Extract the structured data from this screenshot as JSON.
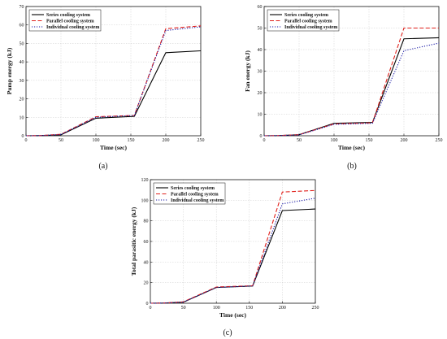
{
  "chart_data": [
    {
      "type": "line",
      "panel_label": "(a)",
      "xlabel": "Time (sec)",
      "ylabel": "Pump energy (kJ)",
      "xlim": [
        0,
        250
      ],
      "ylim": [
        0,
        70
      ],
      "xticks": [
        0,
        50,
        100,
        150,
        200,
        250
      ],
      "yticks": [
        0,
        10,
        20,
        30,
        40,
        50,
        60,
        70
      ],
      "grid": true,
      "legend_position": "top-left",
      "series": [
        {
          "name": "Series cooling system",
          "color": "#000000",
          "dash": "solid",
          "x": [
            0,
            20,
            50,
            100,
            155,
            200,
            250
          ],
          "y": [
            0,
            0.1,
            0.5,
            9.5,
            10.5,
            45,
            46
          ]
        },
        {
          "name": "Parallel cooling system",
          "color": "#e0201b",
          "dash": "dashed",
          "x": [
            0,
            20,
            50,
            100,
            155,
            200,
            250
          ],
          "y": [
            0,
            0.1,
            0.8,
            10.3,
            11,
            58,
            59.5
          ]
        },
        {
          "name": "Individual cooling system",
          "color": "#1a1aa6",
          "dash": "dotted",
          "x": [
            0,
            20,
            50,
            100,
            155,
            200,
            250
          ],
          "y": [
            0,
            0.1,
            0.7,
            10,
            11,
            57,
            59
          ]
        }
      ]
    },
    {
      "type": "line",
      "panel_label": "(b)",
      "xlabel": "Time (sec)",
      "ylabel": "Fan energy (kJ)",
      "xlim": [
        0,
        250
      ],
      "ylim": [
        0,
        60
      ],
      "xticks": [
        0,
        50,
        100,
        150,
        200,
        250
      ],
      "yticks": [
        0,
        10,
        20,
        30,
        40,
        50,
        60
      ],
      "grid": true,
      "legend_position": "top-left",
      "series": [
        {
          "name": "Series cooling system",
          "color": "#000000",
          "dash": "solid",
          "x": [
            0,
            20,
            50,
            100,
            155,
            200,
            250
          ],
          "y": [
            0,
            0.1,
            0.5,
            5.8,
            6.2,
            45,
            45.5
          ]
        },
        {
          "name": "Parallel cooling system",
          "color": "#e0201b",
          "dash": "dashed",
          "x": [
            0,
            20,
            50,
            100,
            155,
            200,
            250
          ],
          "y": [
            0,
            0.1,
            0.5,
            5.5,
            6,
            50,
            50
          ]
        },
        {
          "name": "Individual cooling system",
          "color": "#1a1aa6",
          "dash": "dotted",
          "x": [
            0,
            20,
            50,
            100,
            155,
            200,
            250
          ],
          "y": [
            0,
            0.1,
            0.4,
            5.3,
            5.8,
            39.5,
            43
          ]
        }
      ]
    },
    {
      "type": "line",
      "panel_label": "(c)",
      "xlabel": "Time (sec)",
      "ylabel": "Total parasitic energy (kJ)",
      "xlim": [
        0,
        250
      ],
      "ylim": [
        0,
        120
      ],
      "xticks": [
        0,
        50,
        100,
        150,
        200,
        250
      ],
      "yticks": [
        0,
        20,
        40,
        60,
        80,
        100,
        120
      ],
      "grid": true,
      "legend_position": "top-left",
      "series": [
        {
          "name": "Series cooling system",
          "color": "#000000",
          "dash": "solid",
          "x": [
            0,
            20,
            50,
            100,
            155,
            200,
            250
          ],
          "y": [
            0,
            0.2,
            1,
            15.3,
            16.7,
            90,
            91.5
          ]
        },
        {
          "name": "Parallel cooling system",
          "color": "#e0201b",
          "dash": "dashed",
          "x": [
            0,
            20,
            50,
            100,
            155,
            200,
            250
          ],
          "y": [
            0,
            0.2,
            1.3,
            15.8,
            17,
            108,
            109.5
          ]
        },
        {
          "name": "Individual cooling system",
          "color": "#1a1aa6",
          "dash": "dotted",
          "x": [
            0,
            20,
            50,
            100,
            155,
            200,
            250
          ],
          "y": [
            0,
            0.2,
            1.1,
            15.3,
            16.8,
            96.5,
            102
          ]
        }
      ]
    }
  ]
}
